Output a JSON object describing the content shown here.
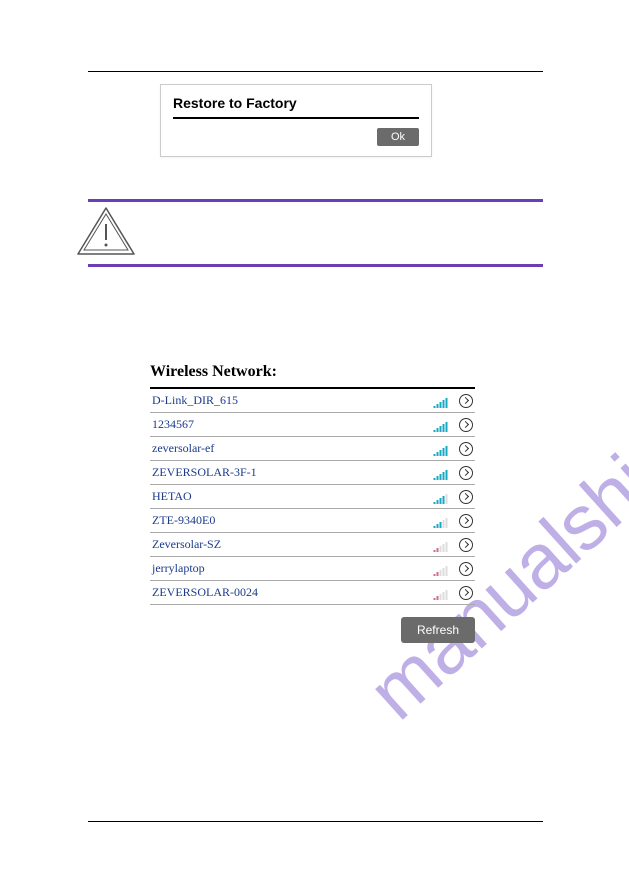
{
  "restore": {
    "title": "Restore to Factory",
    "ok_label": "Ok"
  },
  "wifi": {
    "heading": "Wireless Network:",
    "refresh_label": "Refresh",
    "networks": [
      {
        "name": "D-Link_DIR_615",
        "strength": 5,
        "color": "#18a8c4"
      },
      {
        "name": "1234567",
        "strength": 5,
        "color": "#18a8c4"
      },
      {
        "name": "zeversolar-ef",
        "strength": 5,
        "color": "#18a8c4"
      },
      {
        "name": "ZEVERSOLAR-3F-1",
        "strength": 5,
        "color": "#18a8c4"
      },
      {
        "name": "HETAO",
        "strength": 4,
        "color": "#18a8c4"
      },
      {
        "name": "ZTE-9340E0",
        "strength": 3,
        "color": "#18a8c4"
      },
      {
        "name": "Zeversolar-SZ",
        "strength": 2,
        "color": "#d46a8a"
      },
      {
        "name": "jerrylaptop",
        "strength": 2,
        "color": "#d46a8a"
      },
      {
        "name": "ZEVERSOLAR-0024",
        "strength": 2,
        "color": "#d46a8a"
      }
    ]
  },
  "watermark": "manualshive.com",
  "colors": {
    "purple_bar": "#6a3fb5",
    "link_blue": "#1a3a8a",
    "button_gray": "#6b6b6b",
    "signal_strong": "#18a8c4",
    "signal_weak": "#d46a8a",
    "watermark": "#8a6fd4"
  }
}
